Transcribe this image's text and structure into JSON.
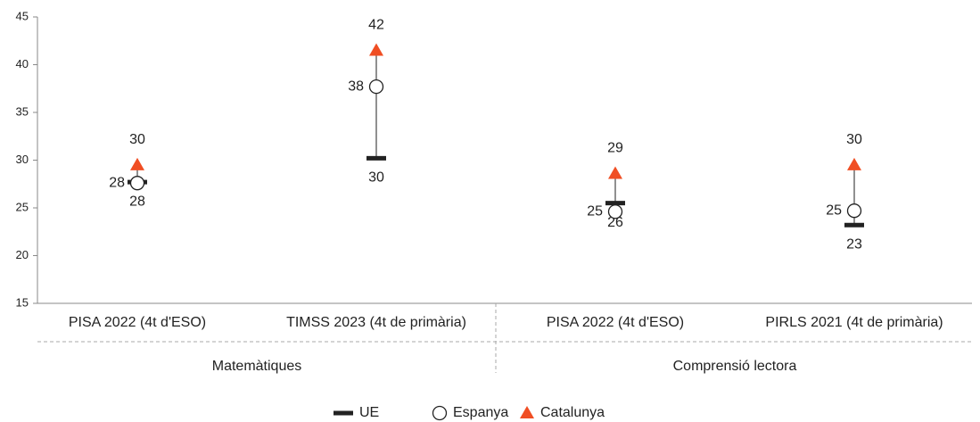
{
  "chart_data": {
    "type": "dot-range",
    "categories": [
      "PISA 2022 (4t d'ESO)",
      "TIMSS 2023 (4t de primària)",
      "PISA 2022 (4t d'ESO)",
      "PIRLS 2021 (4t de primària)"
    ],
    "groups": [
      "Matemàtiques",
      "Comprensió lectora"
    ],
    "series": [
      {
        "name": "UE",
        "color": "#222222",
        "marker": "dash",
        "values": [
          27.7,
          30.2,
          25.5,
          23.2
        ],
        "value_labels": [
          "28",
          "30",
          "26",
          "23"
        ]
      },
      {
        "name": "Espanya",
        "color": "#222222",
        "marker": "circle",
        "values": [
          27.6,
          37.7,
          24.6,
          24.7
        ],
        "value_labels": [
          "28",
          "38",
          "25",
          "25"
        ]
      },
      {
        "name": "Catalunya",
        "color": "#f04e23",
        "marker": "triangle",
        "values": [
          29.5,
          41.5,
          28.6,
          29.5
        ],
        "value_labels": [
          "30",
          "42",
          "29",
          "30"
        ]
      }
    ],
    "ylim": [
      15,
      45
    ],
    "yticks": [
      15,
      20,
      25,
      30,
      35,
      40,
      45
    ]
  }
}
